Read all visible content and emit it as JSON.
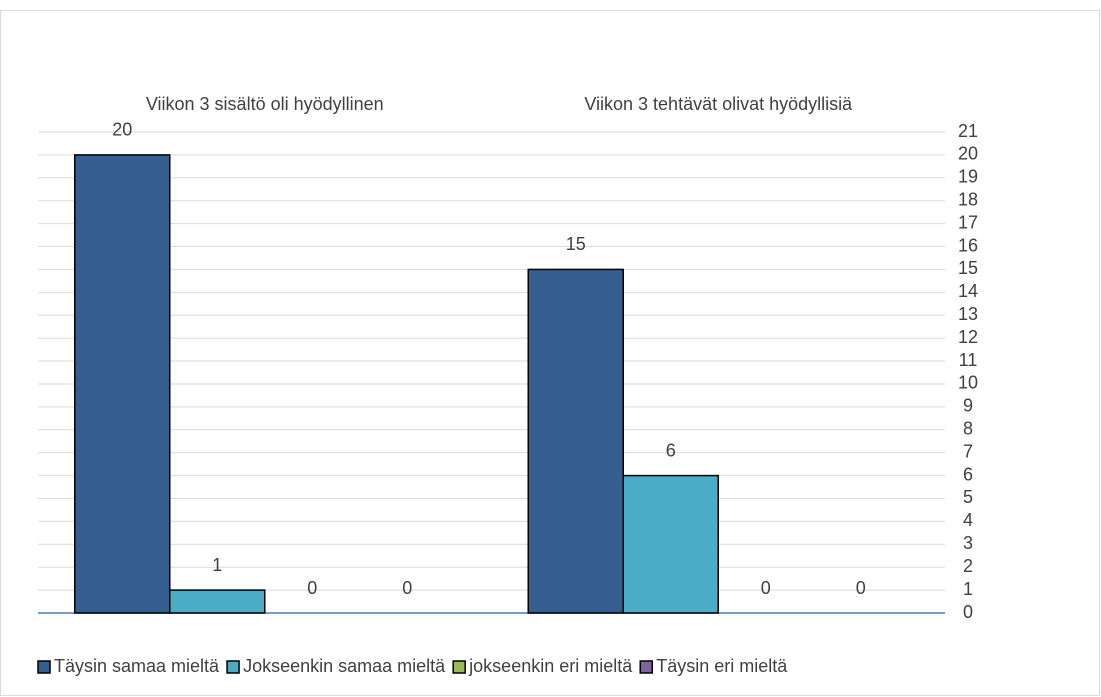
{
  "chart_data": {
    "type": "bar",
    "categories": [
      "Viikon 3 sisältö oli hyödyllinen",
      "Viikon 3 tehtävät olivat hyödyllisiä"
    ],
    "series": [
      {
        "name": "Täysin samaa mieltä",
        "color": "#365f91",
        "values": [
          20,
          15
        ]
      },
      {
        "name": "Jokseenkin samaa mieltä",
        "color": "#4bacc6",
        "values": [
          1,
          6
        ]
      },
      {
        "name": "jokseenkin eri mieltä",
        "color": "#9bbb59",
        "values": [
          0,
          0
        ]
      },
      {
        "name": "Täysin eri mieltä",
        "color": "#8064a2",
        "values": [
          0,
          0
        ]
      }
    ],
    "ylim": [
      0,
      21
    ],
    "yticks": [
      0,
      1,
      2,
      3,
      4,
      5,
      6,
      7,
      8,
      9,
      10,
      11,
      12,
      13,
      14,
      15,
      16,
      17,
      18,
      19,
      20,
      21
    ],
    "grid": true,
    "legend": "bottom"
  }
}
